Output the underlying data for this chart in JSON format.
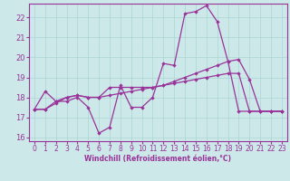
{
  "title": "",
  "xlabel": "Windchill (Refroidissement éolien,°C)",
  "background_color": "#cce8e8",
  "grid_color": "#aad4d4",
  "line_color": "#993399",
  "spine_color": "#993399",
  "xlim": [
    -0.5,
    23.5
  ],
  "ylim": [
    15.8,
    22.7
  ],
  "xticks": [
    0,
    1,
    2,
    3,
    4,
    5,
    6,
    7,
    8,
    9,
    10,
    11,
    12,
    13,
    14,
    15,
    16,
    17,
    18,
    19,
    20,
    21,
    22,
    23
  ],
  "yticks": [
    16,
    17,
    18,
    19,
    20,
    21,
    22
  ],
  "hours": [
    0,
    1,
    2,
    3,
    4,
    5,
    6,
    7,
    8,
    9,
    10,
    11,
    12,
    13,
    14,
    15,
    16,
    17,
    18,
    19,
    20,
    21,
    22,
    23
  ],
  "line1": [
    17.4,
    18.3,
    17.8,
    17.8,
    18.0,
    17.5,
    16.2,
    16.5,
    18.6,
    17.5,
    17.5,
    18.0,
    19.7,
    19.6,
    22.2,
    22.3,
    22.6,
    21.8,
    19.8,
    17.3,
    17.3,
    17.3,
    17.3,
    17.3
  ],
  "line2": [
    17.4,
    17.4,
    17.7,
    18.0,
    18.1,
    18.0,
    18.0,
    18.1,
    18.2,
    18.3,
    18.4,
    18.5,
    18.6,
    18.8,
    19.0,
    19.2,
    19.4,
    19.6,
    19.8,
    19.9,
    18.9,
    17.3,
    17.3,
    17.3
  ],
  "line3": [
    17.4,
    17.4,
    17.8,
    18.0,
    18.1,
    18.0,
    18.0,
    18.5,
    18.5,
    18.5,
    18.5,
    18.5,
    18.6,
    18.7,
    18.8,
    18.9,
    19.0,
    19.1,
    19.2,
    19.2,
    17.3,
    17.3,
    17.3,
    17.3
  ],
  "tick_fontsize": 5.5,
  "xlabel_fontsize": 5.5
}
